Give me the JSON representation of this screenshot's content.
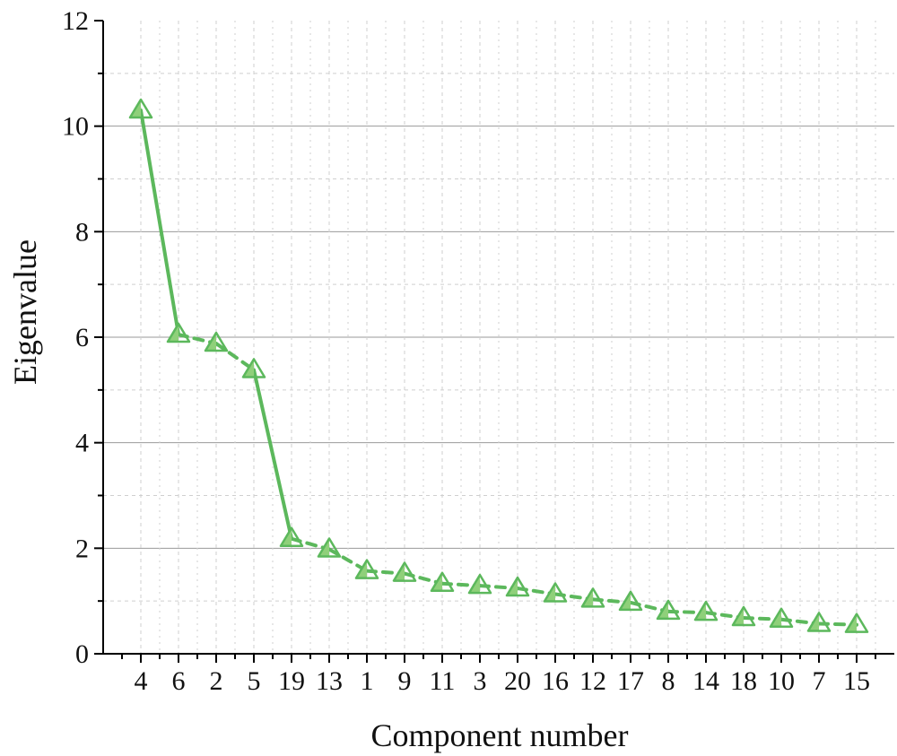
{
  "chart_data": {
    "type": "line",
    "title": "",
    "xlabel": "Component number",
    "ylabel": "Eigenvalue",
    "categories": [
      "4",
      "6",
      "2",
      "5",
      "19",
      "13",
      "1",
      "9",
      "11",
      "3",
      "20",
      "16",
      "12",
      "17",
      "8",
      "14",
      "18",
      "10",
      "7",
      "15"
    ],
    "series": [
      {
        "values": [
          10.3,
          6.05,
          5.88,
          5.38,
          2.18,
          1.98,
          1.57,
          1.52,
          1.33,
          1.29,
          1.24,
          1.13,
          1.03,
          0.97,
          0.8,
          0.78,
          0.68,
          0.65,
          0.57,
          0.55
        ],
        "marker": "triangle",
        "color": "#5cb85c",
        "line_style_first_segments": "solid",
        "line_style_rest": "dashed"
      }
    ],
    "ylim": [
      0,
      12
    ],
    "yticks": [
      "0",
      "2",
      "4",
      "6",
      "8",
      "10",
      "12"
    ],
    "grid": true,
    "legend": "none"
  },
  "colors": {
    "series": "#5cb85c",
    "marker_fill": "#8fd07a",
    "grid_major": "#9a9a9a",
    "grid_minor": "#cfcfcf",
    "axis": "#000000"
  }
}
